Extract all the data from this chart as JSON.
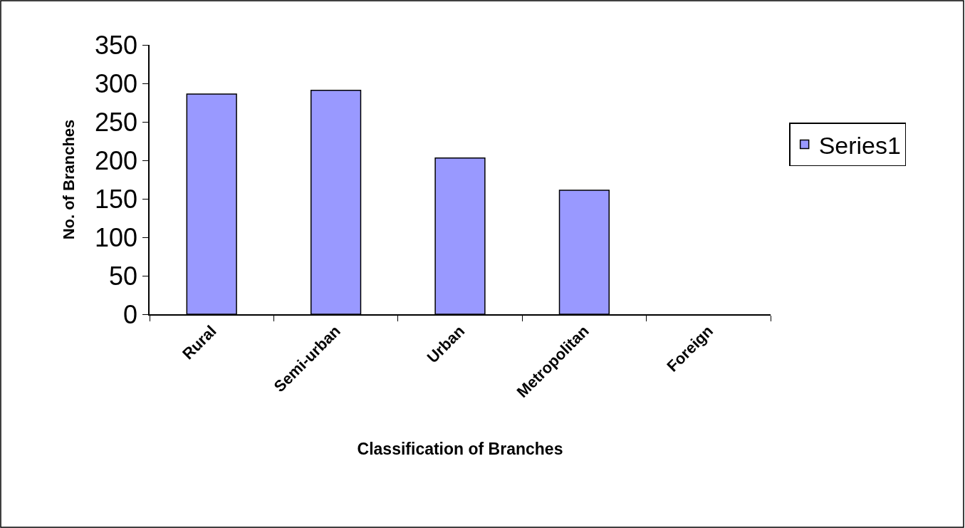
{
  "chart_data": {
    "type": "bar",
    "xlabel": "Classification of Branches",
    "ylabel": "No. of Branches",
    "categories": [
      "Rural",
      "Semi-urban",
      "Urban",
      "Metropolitan",
      "Foreign"
    ],
    "series": [
      {
        "name": "Series1",
        "color": "#9999ff",
        "values": [
          286,
          291,
          203,
          161,
          0
        ]
      }
    ],
    "ylim": [
      0,
      350
    ],
    "yticks": [
      0,
      50,
      100,
      150,
      200,
      250,
      300,
      350
    ],
    "legend": "right"
  }
}
